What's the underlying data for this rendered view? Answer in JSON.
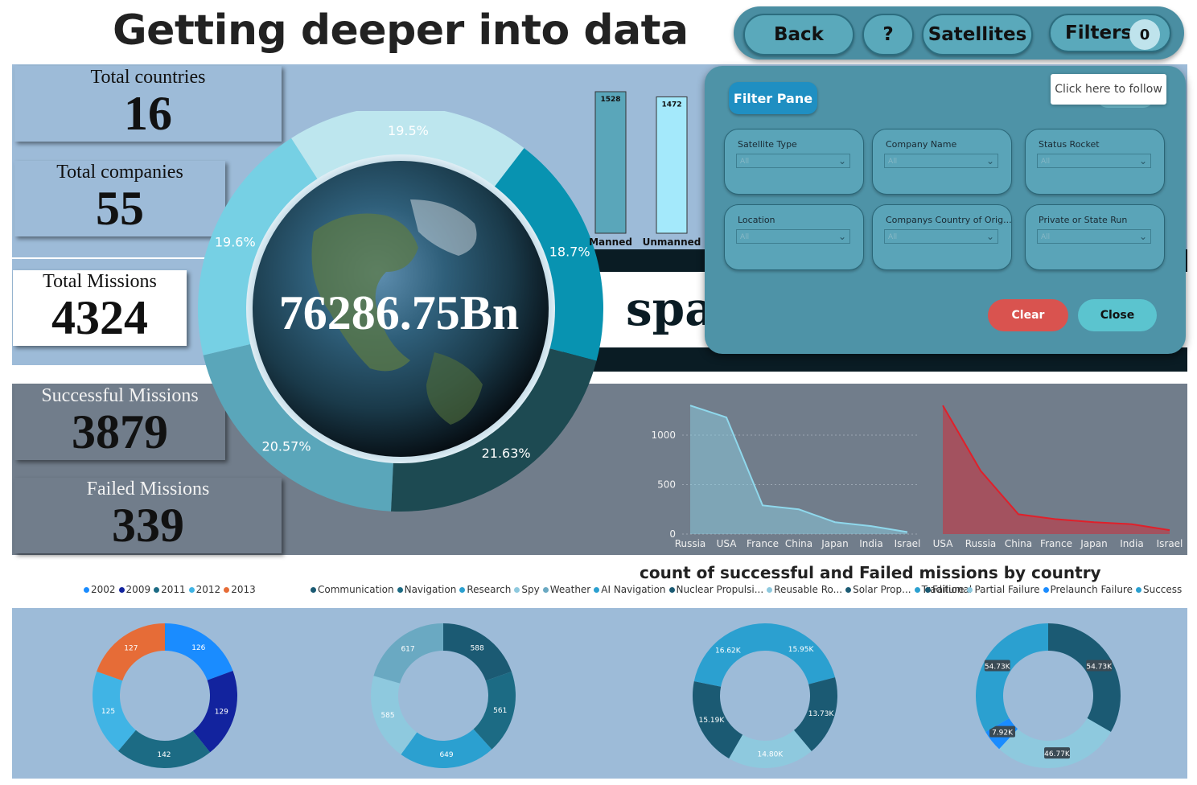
{
  "page_title": "Getting deeper into data",
  "nav": {
    "back_label": "Back",
    "help_label": "?",
    "satellites_label": "Satellites",
    "filters_label": "Filters",
    "filters_count": "0"
  },
  "tooltip": "Click here to follow",
  "kpis": {
    "countries": {
      "label": "Total countries",
      "value": "16"
    },
    "companies": {
      "label": "Total companies",
      "value": "55"
    },
    "missions": {
      "label": "Total Missions",
      "value": "4324"
    },
    "successful": {
      "label": "Successful Missions",
      "value": "3879"
    },
    "failed": {
      "label": "Failed Missions",
      "value": "339"
    }
  },
  "center_value": "76286.75Bn",
  "banner_text": "space missions u",
  "bar_chart_title": "count of successful and Failed missions by country",
  "filter_pane": {
    "title": "Filter Pane",
    "slicers": [
      {
        "label": "Satellite Type",
        "value": "All"
      },
      {
        "label": "Company Name",
        "value": "All"
      },
      {
        "label": "Status Rocket",
        "value": "All"
      },
      {
        "label": "Location",
        "value": "All"
      },
      {
        "label": "Companys Country of Orig...",
        "value": "All"
      },
      {
        "label": "Private or State Run",
        "value": "All"
      }
    ],
    "clear_label": "Clear",
    "close_label": "Close"
  },
  "legends": {
    "years": [
      {
        "name": "2002",
        "color": "#1a8cff"
      },
      {
        "name": "2009",
        "color": "#12239e"
      },
      {
        "name": "2011",
        "color": "#1c6b84"
      },
      {
        "name": "2012",
        "color": "#40b4e5"
      },
      {
        "name": "2013",
        "color": "#e66c37"
      }
    ],
    "types": [
      {
        "name": "Communication",
        "color": "#1b5a73"
      },
      {
        "name": "Navigation",
        "color": "#1c6b84"
      },
      {
        "name": "Research",
        "color": "#2ba0d0"
      },
      {
        "name": "Spy",
        "color": "#8ec9de"
      },
      {
        "name": "Weather",
        "color": "#6aa9c2"
      },
      {
        "name": "AI Navigation",
        "color": "#2ba0d0"
      },
      {
        "name": "Nuclear Propulsi...",
        "color": "#1b5a73"
      },
      {
        "name": "Reusable Ro...",
        "color": "#8ec9de"
      },
      {
        "name": "Solar Prop...",
        "color": "#1b5a73"
      },
      {
        "name": "Traditional",
        "color": "#2ba0d0"
      }
    ],
    "status": [
      {
        "name": "Failure",
        "color": "#1b5a73"
      },
      {
        "name": "Partial Failure",
        "color": "#8ec9de"
      },
      {
        "name": "Prelaunch Failure",
        "color": "#1a8cff"
      },
      {
        "name": "Success",
        "color": "#2ba0d0"
      }
    ]
  },
  "chart_data": [
    {
      "type": "pie",
      "variant": "donut",
      "slices": [
        {
          "label": "19.5%",
          "value": 19.5,
          "color": "#bde6ee"
        },
        {
          "label": "18.7%",
          "value": 18.7,
          "color": "#0893b1"
        },
        {
          "label": "21.63%",
          "value": 21.63,
          "color": "#1d4a52"
        },
        {
          "label": "20.57%",
          "value": 20.57,
          "color": "#5aa6ba"
        },
        {
          "label": "19.6%",
          "value": 19.6,
          "color": "#76d0e4"
        }
      ]
    },
    {
      "type": "bar",
      "categories": [
        "Manned",
        "Unmanned"
      ],
      "values": [
        1528,
        1472
      ],
      "colors": [
        "#5aa6ba",
        "#a4e9fb"
      ]
    },
    {
      "type": "area",
      "categories": [
        "Russia",
        "USA",
        "France",
        "China",
        "Japan",
        "India",
        "Israel"
      ],
      "values": [
        1300,
        1180,
        290,
        250,
        120,
        80,
        20
      ],
      "yticks": [
        0,
        500,
        1000
      ],
      "ylim": [
        0,
        1350
      ],
      "color": "#8fd8ec"
    },
    {
      "type": "area",
      "categories": [
        "USA",
        "Russia",
        "China",
        "France",
        "Japan",
        "India",
        "Israel"
      ],
      "values": [
        1300,
        640,
        200,
        150,
        120,
        100,
        40
      ],
      "ylim": [
        0,
        1350
      ],
      "color": "#e0202a"
    },
    {
      "type": "pie",
      "variant": "donut",
      "legend": "years",
      "slices": [
        {
          "label": "126",
          "value": 126,
          "color": "#1a8cff"
        },
        {
          "label": "129",
          "value": 129,
          "color": "#12239e"
        },
        {
          "label": "142",
          "value": 142,
          "color": "#1c6b84"
        },
        {
          "label": "125",
          "value": 125,
          "color": "#40b4e5"
        },
        {
          "label": "127",
          "value": 127,
          "color": "#e66c37"
        }
      ]
    },
    {
      "type": "pie",
      "variant": "donut",
      "legend": "types",
      "slices": [
        {
          "label": "588",
          "value": 588,
          "color": "#1b5a73"
        },
        {
          "label": "561",
          "value": 561,
          "color": "#1c6b84"
        },
        {
          "label": "649",
          "value": 649,
          "color": "#2ba0d0"
        },
        {
          "label": "585",
          "value": 585,
          "color": "#8ec9de"
        },
        {
          "label": "617",
          "value": 617,
          "color": "#6aa9c2"
        }
      ]
    },
    {
      "type": "pie",
      "variant": "donut",
      "legend": "types",
      "slices": [
        {
          "label": "15.95K",
          "value": 15.95,
          "color": "#2ba0d0"
        },
        {
          "label": "13.73K",
          "value": 13.73,
          "color": "#1b5a73"
        },
        {
          "label": "14.80K",
          "value": 14.8,
          "color": "#8ec9de"
        },
        {
          "label": "15.19K",
          "value": 15.19,
          "color": "#1b5a73"
        },
        {
          "label": "16.62K",
          "value": 16.62,
          "color": "#2ba0d0"
        }
      ]
    },
    {
      "type": "pie",
      "variant": "donut",
      "legend": "status",
      "slices": [
        {
          "label": "54.73K",
          "value": 54.73,
          "color": "#1b5a73"
        },
        {
          "label": "46.77K",
          "value": 46.77,
          "color": "#8ec9de"
        },
        {
          "label": "7.92K",
          "value": 7.92,
          "color": "#1a8cff"
        },
        {
          "label": "54.73K",
          "value": 54.73,
          "color": "#2ba0d0"
        }
      ]
    }
  ]
}
